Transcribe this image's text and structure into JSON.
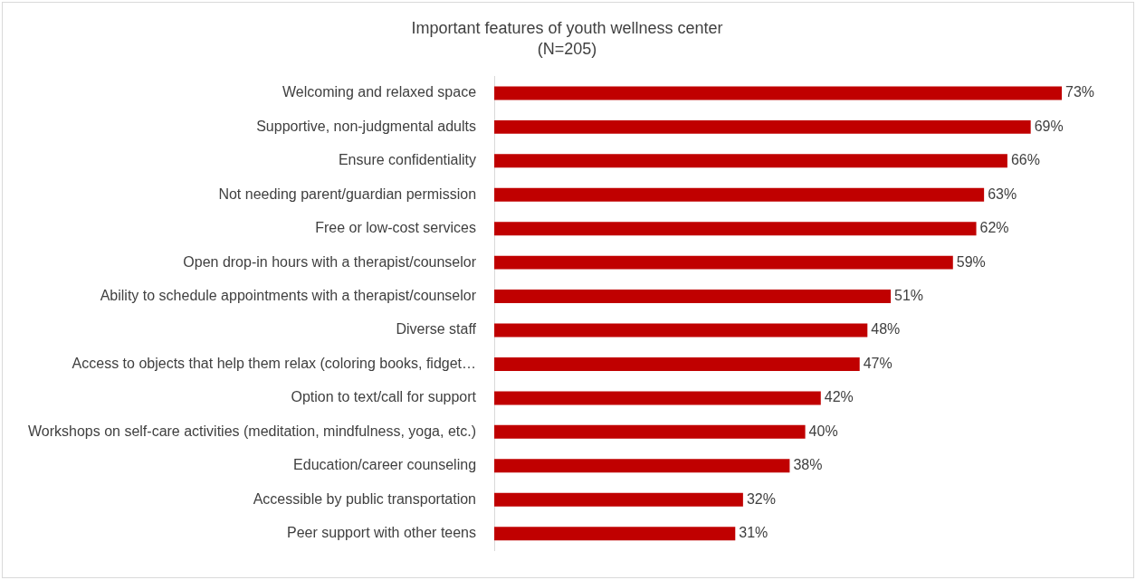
{
  "chart_data": {
    "type": "bar",
    "orientation": "horizontal",
    "title": "Important features of youth wellness center",
    "subtitle": "(N=205)",
    "categories": [
      "Welcoming and relaxed space",
      "Supportive, non-judgmental adults",
      "Ensure confidentiality",
      "Not needing parent/guardian permission",
      "Free or low-cost services",
      "Open drop-in hours with a therapist/counselor",
      "Ability to schedule appointments with a therapist/counselor",
      "Diverse staff",
      "Access to objects that help them relax (coloring books, fidget…",
      "Option to text/call for support",
      "Workshops on self-care activities (meditation, mindfulness, yoga, etc.)",
      "Education/career counseling",
      "Accessible by public transportation",
      "Peer support with other teens"
    ],
    "values": [
      73,
      69,
      66,
      63,
      62,
      59,
      51,
      48,
      47,
      42,
      40,
      38,
      32,
      31
    ],
    "value_labels": [
      "73%",
      "69%",
      "66%",
      "63%",
      "62%",
      "59%",
      "51%",
      "48%",
      "47%",
      "42%",
      "40%",
      "38%",
      "32%",
      "31%"
    ],
    "color": "#c00000",
    "legend": false,
    "tick_labels": "y"
  }
}
